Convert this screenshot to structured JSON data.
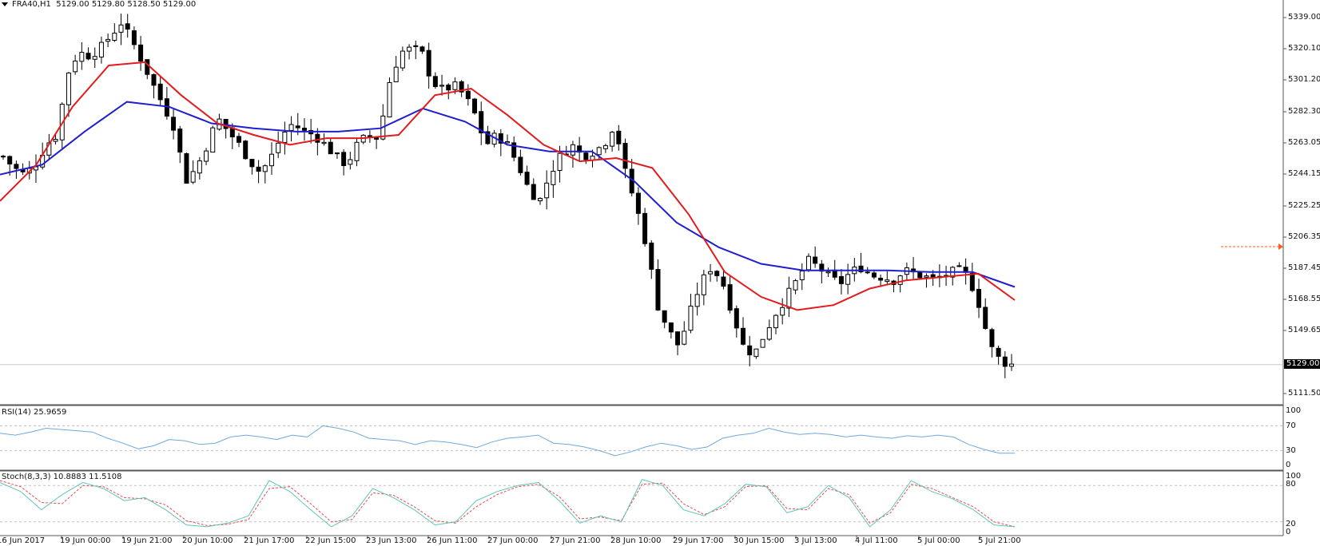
{
  "header": {
    "symbol": "FRA40,H1",
    "ohlc": "5129.00 5129.80 5128.50 5129.00"
  },
  "colors": {
    "background": "#ffffff",
    "bull_body": "#ffffff",
    "bear_body": "#000000",
    "ma_fast": "#e41a1c",
    "ma_slow": "#1f1fd0",
    "rsi_line": "#6fa8dc",
    "stoch_main": "#5fc4b8",
    "stoch_signal": "#e84a4a",
    "grid_dash": "#c0c0c0",
    "bid_line": "#c8c8c8",
    "alert_arrow": "#ff5a1f"
  },
  "price_axis": {
    "ticks": [
      "5339.00",
      "5320.10",
      "5301.20",
      "5282.30",
      "5263.05",
      "5244.15",
      "5225.25",
      "5206.35",
      "5187.45",
      "5168.55",
      "5149.65",
      "5111.50"
    ],
    "current_price": "5129.00"
  },
  "rsi_panel": {
    "label": "RSI(14) 25.9659",
    "levels": [
      "100",
      "70",
      "30",
      "0"
    ]
  },
  "stoch_panel": {
    "label": "Stoch(8,3,3) 10.8883 11.5108",
    "levels": [
      "100",
      "80",
      "20",
      "0"
    ]
  },
  "time_axis": {
    "labels": [
      "16 Jun 2017",
      "19 Jun 00:00",
      "19 Jun 21:00",
      "20 Jun 10:00",
      "21 Jun 17:00",
      "22 Jun 15:00",
      "23 Jun 13:00",
      "26 Jun 11:00",
      "27 Jun 00:00",
      "27 Jun 21:00",
      "28 Jun 10:00",
      "29 Jun 17:00",
      "30 Jun 15:00",
      "3 Jul 13:00",
      "4 Jul 11:00",
      "5 Jul 00:00",
      "5 Jul 21:00"
    ]
  },
  "chart_data": [
    {
      "type": "candlestick",
      "title": "FRA40,H1 5129.00 5129.80 5128.50 5129.00",
      "ylim": [
        5105,
        5348
      ],
      "x": [
        "16 Jun 2017",
        "19 Jun 00:00",
        "19 Jun 21:00",
        "20 Jun 10:00",
        "21 Jun 17:00",
        "22 Jun 15:00",
        "23 Jun 13:00",
        "26 Jun 11:00",
        "27 Jun 00:00",
        "27 Jun 21:00",
        "28 Jun 10:00",
        "29 Jun 17:00",
        "30 Jun 15:00",
        "3 Jul 13:00",
        "4 Jul 11:00",
        "5 Jul 00:00",
        "5 Jul 21:00"
      ],
      "close_path": [
        5255,
        5248,
        5244,
        5250,
        5262,
        5268,
        5305,
        5318,
        5316,
        5320,
        5328,
        5336,
        5325,
        5312,
        5298,
        5285,
        5272,
        5240,
        5248,
        5262,
        5278,
        5270,
        5262,
        5252,
        5245,
        5255,
        5268,
        5275,
        5270,
        5268,
        5262,
        5255,
        5250,
        5262,
        5268,
        5266,
        5300,
        5318,
        5320,
        5318,
        5300,
        5295,
        5298,
        5292,
        5280,
        5262,
        5268,
        5262,
        5250,
        5235,
        5228,
        5245,
        5256,
        5262,
        5255,
        5258,
        5262,
        5275,
        5245,
        5225,
        5200,
        5165,
        5150,
        5140,
        5160,
        5178,
        5188,
        5180,
        5160,
        5140,
        5135,
        5148,
        5160,
        5170,
        5180,
        5192,
        5188,
        5182,
        5178,
        5185,
        5188,
        5183,
        5182,
        5180,
        5186,
        5184,
        5182,
        5180,
        5184,
        5186,
        5182,
        5165,
        5140,
        5131,
        5129
      ],
      "series": [
        {
          "name": "MA fast (red)",
          "values": [
            5228,
            5250,
            5285,
            5310,
            5312,
            5292,
            5275,
            5268,
            5262,
            5266,
            5266,
            5268,
            5292,
            5296,
            5280,
            5262,
            5252,
            5254,
            5248,
            5220,
            5185,
            5170,
            5162,
            5165,
            5175,
            5180,
            5182,
            5184,
            5168
          ]
        },
        {
          "name": "MA slow (blue)",
          "values": [
            5244,
            5250,
            5270,
            5288,
            5285,
            5275,
            5272,
            5270,
            5270,
            5272,
            5284,
            5276,
            5262,
            5258,
            5258,
            5240,
            5215,
            5200,
            5190,
            5186,
            5186,
            5186,
            5185,
            5185,
            5176
          ]
        }
      ],
      "annotations": [
        "current price 5129.00",
        "alert arrow at ~5201"
      ]
    },
    {
      "type": "line",
      "title": "RSI(14) 25.9659",
      "ylim": [
        0,
        100
      ],
      "levels": [
        70,
        30
      ],
      "series": [
        {
          "name": "RSI(14)",
          "values": [
            58,
            55,
            60,
            66,
            64,
            62,
            60,
            50,
            42,
            33,
            38,
            48,
            46,
            40,
            42,
            52,
            55,
            52,
            48,
            55,
            52,
            70,
            66,
            60,
            50,
            48,
            46,
            40,
            46,
            44,
            40,
            35,
            44,
            50,
            52,
            55,
            42,
            40,
            36,
            30,
            22,
            28,
            36,
            42,
            38,
            32,
            36,
            50,
            55,
            58,
            66,
            60,
            56,
            58,
            56,
            52,
            55,
            52,
            50,
            54,
            52,
            55,
            52,
            40,
            32,
            26,
            26
          ]
        }
      ]
    },
    {
      "type": "line",
      "title": "Stoch(8,3,3) 10.8883 11.5108",
      "ylim": [
        0,
        100
      ],
      "levels": [
        80,
        20
      ],
      "series": [
        {
          "name": "%K",
          "values": [
            85,
            70,
            40,
            65,
            85,
            75,
            55,
            60,
            40,
            15,
            12,
            18,
            30,
            88,
            70,
            40,
            12,
            30,
            75,
            60,
            40,
            15,
            20,
            55,
            70,
            80,
            85,
            55,
            18,
            30,
            20,
            90,
            80,
            40,
            30,
            50,
            82,
            78,
            35,
            45,
            80,
            60,
            12,
            40,
            88,
            70,
            58,
            40,
            15,
            12
          ]
        },
        {
          "name": "%D",
          "values": [
            88,
            78,
            52,
            50,
            80,
            78,
            60,
            58,
            48,
            22,
            14,
            16,
            24,
            75,
            78,
            50,
            20,
            24,
            68,
            64,
            45,
            22,
            18,
            45,
            65,
            78,
            82,
            62,
            25,
            28,
            22,
            82,
            84,
            50,
            32,
            45,
            78,
            80,
            42,
            40,
            75,
            65,
            18,
            35,
            82,
            75,
            60,
            45,
            20,
            12
          ]
        }
      ]
    }
  ]
}
